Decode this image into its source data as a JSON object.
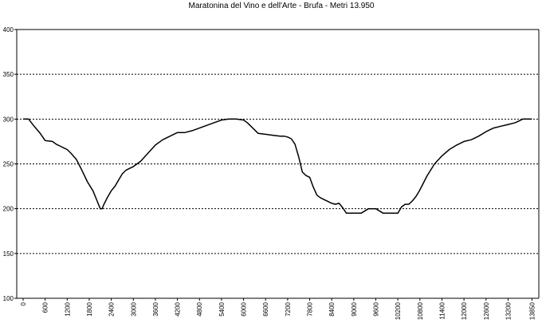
{
  "chart_data": {
    "type": "line",
    "title": "Maratonina del Vino e dell'Arte - Brufa - Metri 13.950",
    "xlabel": "",
    "ylabel": "",
    "ylim": [
      100,
      400
    ],
    "xlim": [
      0,
      13950
    ],
    "grid": true,
    "y_ticks": [
      100,
      150,
      200,
      250,
      300,
      350,
      400
    ],
    "x_ticks": [
      0,
      600,
      1200,
      1800,
      2400,
      3000,
      3600,
      4200,
      4800,
      5400,
      6000,
      6600,
      7200,
      7800,
      8400,
      9000,
      9600,
      10200,
      10800,
      11400,
      12000,
      12600,
      13200,
      13850
    ],
    "series": [
      {
        "x": [
          0,
          150,
          300,
          450,
          600,
          800,
          900,
          1000,
          1100,
          1200,
          1300,
          1450,
          1600,
          1750,
          1900,
          2000,
          2100,
          2150,
          2200,
          2300,
          2400,
          2500,
          2600,
          2700,
          2800,
          2900,
          3000,
          3200,
          3400,
          3600,
          3800,
          4000,
          4200,
          4400,
          4600,
          4800,
          5000,
          5200,
          5400,
          5600,
          5800,
          6000,
          6100,
          6200,
          6400,
          6600,
          6800,
          7000,
          7100,
          7200,
          7300,
          7400,
          7500,
          7600,
          7700,
          7800,
          7900,
          8000,
          8100,
          8200,
          8300,
          8400,
          8500,
          8600,
          8700,
          8800,
          9000,
          9200,
          9400,
          9600,
          9800,
          10000,
          10200,
          10300,
          10400,
          10500,
          10600,
          10700,
          10800,
          11000,
          11200,
          11400,
          11600,
          11800,
          12000,
          12200,
          12400,
          12600,
          12800,
          13000,
          13200,
          13400,
          13600,
          13850
        ],
        "values": [
          300,
          300,
          292,
          285,
          276,
          275,
          272,
          270,
          268,
          266,
          262,
          255,
          243,
          230,
          220,
          210,
          200,
          200,
          205,
          213,
          220,
          225,
          232,
          239,
          243,
          245,
          247,
          253,
          262,
          271,
          277,
          281,
          285,
          285,
          287,
          290,
          293,
          296,
          299,
          300,
          300,
          299,
          296,
          292,
          284,
          283,
          282,
          281,
          281,
          280,
          278,
          272,
          258,
          241,
          237,
          235,
          224,
          215,
          212,
          210,
          208,
          206,
          205,
          206,
          201,
          195,
          195,
          195,
          200,
          200,
          195,
          195,
          195,
          202,
          205,
          205,
          209,
          214,
          221,
          237,
          250,
          259,
          266,
          271,
          275,
          277,
          281,
          286,
          290,
          292,
          294,
          296,
          300,
          300
        ]
      }
    ]
  }
}
